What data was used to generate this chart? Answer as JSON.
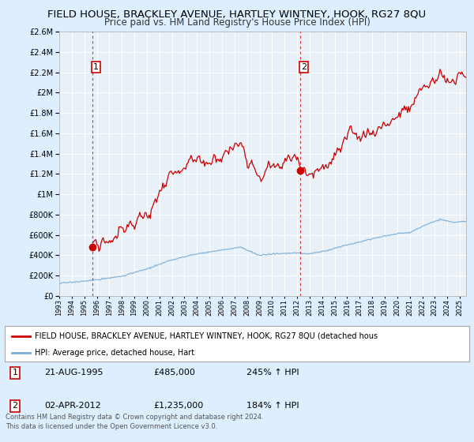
{
  "title": "FIELD HOUSE, BRACKLEY AVENUE, HARTLEY WINTNEY, HOOK, RG27 8QU",
  "subtitle": "Price paid vs. HM Land Registry's House Price Index (HPI)",
  "legend_line1": "FIELD HOUSE, BRACKLEY AVENUE, HARTLEY WINTNEY, HOOK, RG27 8QU (detached hous",
  "legend_line2": "HPI: Average price, detached house, Hart",
  "annotation1_date": "21-AUG-1995",
  "annotation1_price": "£485,000",
  "annotation1_hpi": "245% ↑ HPI",
  "annotation2_date": "02-APR-2012",
  "annotation2_price": "£1,235,000",
  "annotation2_hpi": "184% ↑ HPI",
  "footer1": "Contains HM Land Registry data © Crown copyright and database right 2024.",
  "footer2": "This data is licensed under the Open Government Licence v3.0.",
  "red_color": "#cc0000",
  "blue_color": "#7aaed6",
  "bg_color": "#ddeeff",
  "plot_bg": "#e8f0f8",
  "grid_color": "#ffffff",
  "ylim": [
    0,
    2600000
  ],
  "xlim_start": 1993.0,
  "xlim_end": 2025.5,
  "marker1_x": 1995.64,
  "marker1_y": 485000,
  "marker2_x": 2012.25,
  "marker2_y": 1235000,
  "vline1_x": 1995.64,
  "vline2_x": 2012.25,
  "hpi_seed": 17,
  "red_seed": 99
}
